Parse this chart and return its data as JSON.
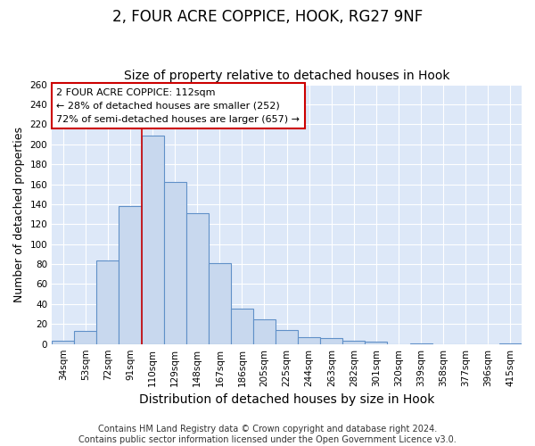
{
  "title": "2, FOUR ACRE COPPICE, HOOK, RG27 9NF",
  "subtitle": "Size of property relative to detached houses in Hook",
  "xlabel": "Distribution of detached houses by size in Hook",
  "ylabel": "Number of detached properties",
  "categories": [
    "34sqm",
    "53sqm",
    "72sqm",
    "91sqm",
    "110sqm",
    "129sqm",
    "148sqm",
    "167sqm",
    "186sqm",
    "205sqm",
    "225sqm",
    "244sqm",
    "263sqm",
    "282sqm",
    "301sqm",
    "320sqm",
    "339sqm",
    "358sqm",
    "377sqm",
    "396sqm",
    "415sqm"
  ],
  "values": [
    3,
    13,
    84,
    138,
    209,
    162,
    131,
    81,
    35,
    25,
    14,
    7,
    6,
    3,
    2,
    0,
    1,
    0,
    0,
    0,
    1
  ],
  "bar_color": "#c8d8ee",
  "bar_edge_color": "#6090c8",
  "red_line_index": 4,
  "annotation_line1": "2 FOUR ACRE COPPICE: 112sqm",
  "annotation_line2": "← 28% of detached houses are smaller (252)",
  "annotation_line3": "72% of semi-detached houses are larger (657) →",
  "annotation_box_color": "#ffffff",
  "annotation_box_edge_color": "#cc0000",
  "ylim": [
    0,
    260
  ],
  "yticks": [
    0,
    20,
    40,
    60,
    80,
    100,
    120,
    140,
    160,
    180,
    200,
    220,
    240,
    260
  ],
  "bg_color": "#dde8f8",
  "grid_color": "#ffffff",
  "fig_bg_color": "#ffffff",
  "footer_line1": "Contains HM Land Registry data © Crown copyright and database right 2024.",
  "footer_line2": "Contains public sector information licensed under the Open Government Licence v3.0.",
  "title_fontsize": 12,
  "subtitle_fontsize": 10,
  "tick_fontsize": 7.5,
  "ylabel_fontsize": 9,
  "xlabel_fontsize": 10,
  "footer_fontsize": 7
}
